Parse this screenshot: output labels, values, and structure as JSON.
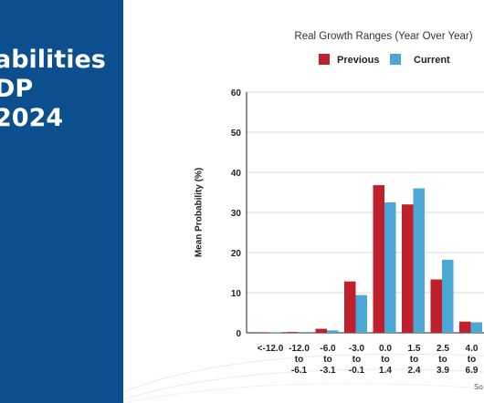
{
  "panel": {
    "title_lines": [
      "abilities",
      "DP",
      "2024"
    ]
  },
  "chart_data": {
    "type": "bar",
    "title": "Real Growth Ranges (Year Over Year)",
    "ylabel": "Mean Probability (%)",
    "xlabel": "",
    "ylim": [
      0,
      60
    ],
    "yticks": [
      0,
      10,
      20,
      30,
      40,
      50,
      60
    ],
    "categories": [
      [
        "<-12.0"
      ],
      [
        "-12.0",
        "to",
        "-6.1"
      ],
      [
        "-6.0",
        "to",
        "-3.1"
      ],
      [
        "-3.0",
        "to",
        "-0.1"
      ],
      [
        "0.0",
        "to",
        "1.4"
      ],
      [
        "1.5",
        "to",
        "2.4"
      ],
      [
        "2.5",
        "to",
        "3.9"
      ],
      [
        "4.0",
        "to",
        "6.9"
      ]
    ],
    "series": [
      {
        "name": "Previous",
        "color": "#c0202c",
        "values": [
          0.1,
          0.2,
          1.0,
          12.8,
          36.8,
          32.0,
          13.3,
          2.8
        ]
      },
      {
        "name": "Current",
        "color": "#4aa7d6",
        "values": [
          0.1,
          0.2,
          0.6,
          9.4,
          32.5,
          36.0,
          18.2,
          2.6
        ]
      }
    ],
    "legend": "top",
    "source_text": "So"
  }
}
